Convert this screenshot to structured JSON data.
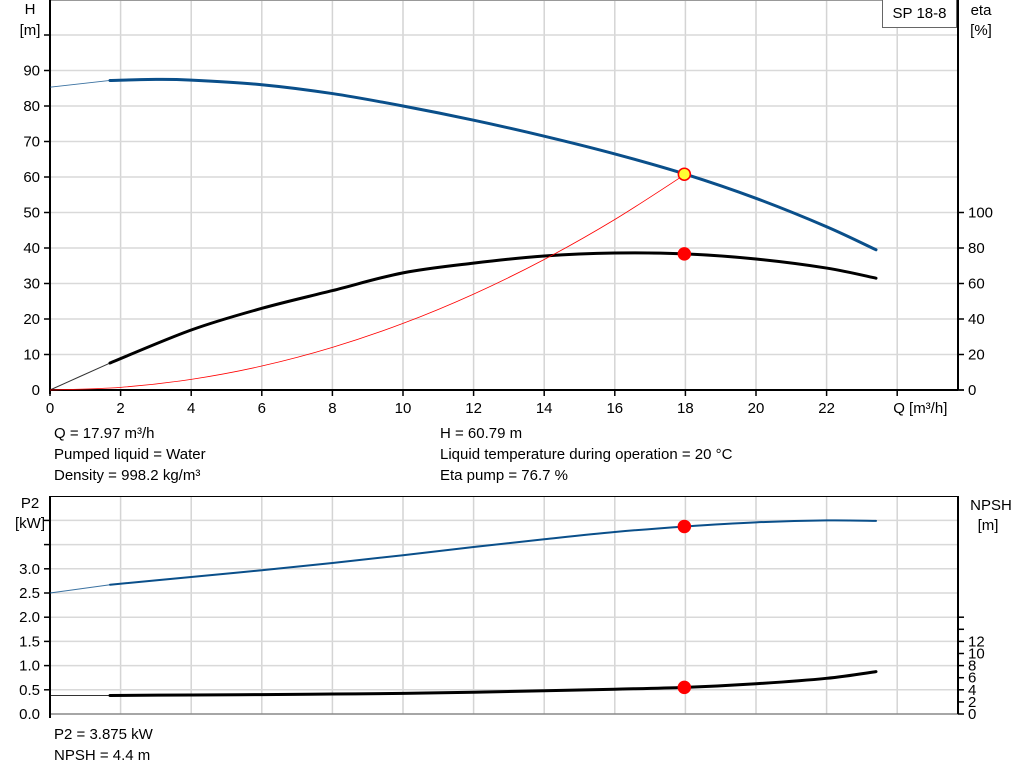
{
  "chart_data": [
    {
      "type": "line",
      "title": "SP 18-8",
      "xlabel": "Q [m³/h]",
      "ylabel_left": [
        "H",
        "[m]"
      ],
      "ylabel_right": [
        "eta",
        "[%]"
      ],
      "xlim": [
        0,
        25.7
      ],
      "ylim_left": [
        0,
        110
      ],
      "ylim_right": [
        0,
        220
      ],
      "x_ticks": [
        0,
        2,
        4,
        6,
        8,
        10,
        12,
        14,
        16,
        18,
        20,
        22
      ],
      "y_ticks_left": [
        0,
        10,
        20,
        30,
        40,
        50,
        60,
        70,
        80,
        90
      ],
      "y_ticks_right": [
        0,
        20,
        40,
        60,
        80,
        100
      ],
      "grid": true,
      "series": [
        {
          "name": "H",
          "axis": "left",
          "color": "#0a4f8a",
          "x": [
            0,
            1.7,
            3,
            4,
            6,
            8,
            10,
            12,
            14,
            16,
            18,
            20,
            22,
            23.4
          ],
          "y": [
            85.3,
            87.2,
            87.5,
            87.3,
            86.0,
            83.5,
            80.0,
            76.0,
            71.5,
            66.5,
            60.8,
            54.0,
            46.0,
            39.5
          ],
          "thin_until": 1.7
        },
        {
          "name": "eta",
          "axis": "right",
          "color": "#000000",
          "x": [
            0,
            1.7,
            4,
            6,
            8,
            10,
            12,
            14,
            16,
            18,
            20,
            22,
            23.4
          ],
          "y": [
            0,
            15.2,
            33.8,
            46.0,
            56.0,
            66.0,
            71.5,
            75.5,
            77.2,
            76.7,
            73.8,
            68.7,
            63.0
          ],
          "thin_until": 1.7
        },
        {
          "name": "system",
          "axis": "left",
          "color": "#ff0000",
          "x": [
            0,
            2,
            4,
            6,
            8,
            10,
            12,
            14,
            16,
            18
          ],
          "y": [
            0,
            0.75,
            3.0,
            6.75,
            12.0,
            18.76,
            27.02,
            36.77,
            48.03,
            60.79
          ]
        }
      ],
      "operating_points": [
        {
          "x": 17.97,
          "y": 60.79,
          "axis": "left",
          "fill": "#ffff33",
          "stroke": "#ff0000"
        },
        {
          "x": 17.97,
          "y": 76.7,
          "axis": "right",
          "fill": "#ff0000",
          "stroke": "#ff0000"
        }
      ]
    },
    {
      "type": "line",
      "ylabel_left": [
        "P2",
        "[kW]"
      ],
      "ylabel_right": [
        "NPSH",
        "[m]"
      ],
      "xlim": [
        0,
        25.7
      ],
      "ylim_left": [
        0,
        4.5
      ],
      "ylim_right": [
        0,
        18
      ],
      "y_ticks_left": [
        "0.0",
        "0.5",
        "1.0",
        "1.5",
        "2.0",
        "2.5",
        "3.0"
      ],
      "y_ticks_right": [
        0,
        2,
        4,
        6,
        8,
        10,
        12
      ],
      "grid": true,
      "series": [
        {
          "name": "P2",
          "axis": "left",
          "color": "#0a4f8a",
          "x": [
            0,
            1.7,
            4,
            6,
            8,
            10,
            12,
            14,
            16,
            18,
            20,
            22,
            23.4
          ],
          "y": [
            2.5,
            2.67,
            2.83,
            2.97,
            3.12,
            3.28,
            3.45,
            3.61,
            3.76,
            3.875,
            3.96,
            4.0,
            3.99
          ],
          "thin_until": 1.7
        },
        {
          "name": "NPSH",
          "axis": "right",
          "color": "#000000",
          "x": [
            0,
            1.7,
            4,
            6,
            8,
            10,
            12,
            14,
            16,
            18,
            20,
            22,
            23.4
          ],
          "y": [
            3.05,
            3.05,
            3.15,
            3.2,
            3.3,
            3.4,
            3.6,
            3.85,
            4.1,
            4.4,
            5.0,
            5.9,
            7.0
          ],
          "thin_until": 1.7
        }
      ],
      "operating_points": [
        {
          "x": 17.97,
          "y": 3.875,
          "axis": "left",
          "fill": "#ff0000",
          "stroke": "#ff0000"
        },
        {
          "x": 17.97,
          "y": 4.4,
          "axis": "right",
          "fill": "#ff0000",
          "stroke": "#ff0000"
        }
      ]
    }
  ],
  "info_top": {
    "q": "Q = 17.97 m³/h",
    "liquid": "Pumped liquid = Water",
    "density": "Density = 998.2 kg/m³",
    "h": "H = 60.79 m",
    "temp": "Liquid temperature during operation = 20 °C",
    "eta": "Eta pump = 76.7 %"
  },
  "info_bottom": {
    "p2": "P2 = 3.875 kW",
    "npsh": "NPSH = 4.4 m"
  }
}
